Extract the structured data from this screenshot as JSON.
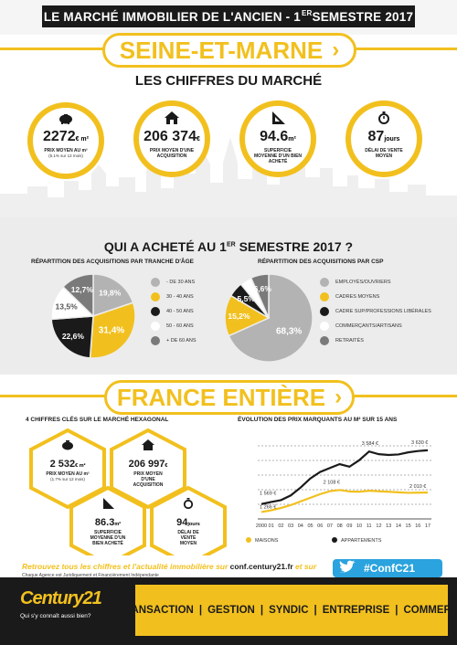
{
  "header": {
    "title_main": "LE MARCHÉ IMMOBILIER DE L'ANCIEN - 1",
    "title_sup": "ER",
    "title_end": " SEMESTRE 2017"
  },
  "region": {
    "name": "SEINE-ET-MARNE",
    "chevron": "›"
  },
  "market": {
    "heading": "LES CHIFFRES DU MARCHÉ",
    "stats": [
      {
        "icon": "piggy-bank-icon",
        "value": "2272",
        "unit": "€ m²",
        "label": "PRIX MOYEN AU m²",
        "sub": "(5.1% sur 12 mois)"
      },
      {
        "icon": "house-icon",
        "value": "206 374",
        "unit": "€",
        "label": "PRIX MOYEN D'UNE ACQUISITION",
        "sub": ""
      },
      {
        "icon": "set-square-icon",
        "value": "94.6",
        "unit": "m²",
        "label": "SUPERFICIE MOYENNE D'UN BIEN ACHETÉ",
        "sub": ""
      },
      {
        "icon": "stopwatch-icon",
        "value": "87",
        "unit": "jours",
        "label": "DÉLAI DE VENTE MOYEN",
        "sub": ""
      }
    ]
  },
  "buyers": {
    "heading_main": "QUI A ACHETÉ AU 1",
    "heading_sup": "ER",
    "heading_end": " SEMESTRE 2017 ?",
    "age_title": "RÉPARTITION DES ACQUISITIONS PAR TRANCHE D'ÂGE",
    "csp_title": "RÉPARTITION DES ACQUISITIONS PAR CSP"
  },
  "chart_data": [
    {
      "type": "pie",
      "title": "RÉPARTITION DES ACQUISITIONS PAR TRANCHE D'ÂGE",
      "categories": [
        "- DE 30 ANS",
        "30 - 40 ANS",
        "40 - 50 ANS",
        "50 - 60 ANS",
        "+ DE 60 ANS"
      ],
      "values": [
        19.8,
        31.4,
        22.6,
        13.5,
        12.7
      ],
      "labels": [
        "19,8%",
        "31,4%",
        "22,6%",
        "13,5%",
        "12,7%"
      ],
      "colors": [
        "#b3b3b3",
        "#f2c01e",
        "#1a1a1a",
        "#ffffff",
        "#7a7a7a"
      ],
      "legend": "right"
    },
    {
      "type": "pie",
      "title": "RÉPARTITION DES ACQUISITIONS PAR CSP",
      "categories": [
        "EMPLOYÉS/OUVRIERS",
        "CADRES MOYENS",
        "CADRE SUP/PROFESSIONS LIBÉRALES",
        "COMMERÇANTS/ARTISANS",
        "RETRAITÉS"
      ],
      "values": [
        68.3,
        15.2,
        5.5,
        4.4,
        6.6
      ],
      "labels": [
        "68,3%",
        "15,2%",
        "5,5%",
        "",
        "6,6%"
      ],
      "colors": [
        "#b3b3b3",
        "#f2c01e",
        "#1a1a1a",
        "#ffffff",
        "#7a7a7a"
      ],
      "legend": "right"
    },
    {
      "type": "line",
      "title": "ÉVOLUTION DES PRIX MARQUANTS AU M² SUR 15 ANS",
      "categories": [
        "2000",
        "01",
        "02",
        "03",
        "04",
        "05",
        "06",
        "07",
        "08",
        "09",
        "10",
        "11",
        "12",
        "13",
        "14",
        "15",
        "16",
        "17"
      ],
      "series": [
        {
          "name": "MAISONS",
          "color": "#f2c01e",
          "values": [
            1266,
            1330,
            1420,
            1530,
            1670,
            1810,
            1950,
            2060,
            2108,
            2050,
            2040,
            2080,
            2060,
            2040,
            2020,
            2000,
            2005,
            2010
          ]
        },
        {
          "name": "APPARTEMENTS",
          "color": "#1a1a1a",
          "values": [
            1569,
            1650,
            1720,
            1900,
            2200,
            2550,
            2800,
            2950,
            3100,
            3000,
            3250,
            3584,
            3480,
            3450,
            3470,
            3550,
            3600,
            3630
          ]
        }
      ],
      "annotations": [
        "1 266 €",
        "1 569 €",
        "2 108 €",
        "3 584 €",
        "3 630 €",
        "2 010 €"
      ],
      "ylim": [
        1000,
        3800
      ],
      "legend": "bottom"
    }
  ],
  "france": {
    "name": "FRANCE ENTIÈRE",
    "chevron": "›",
    "key_title": "4 CHIFFRES CLÉS SUR LE MARCHÉ HEXAGONAL",
    "evo_title": "ÉVOLUTION DES PRIX MARQUANTS AU M² SUR 15 ANS",
    "stats": [
      {
        "icon": "piggy-bank-icon",
        "value": "2 532",
        "unit": "€ m²",
        "label": "PRIX MOYEN AU m²",
        "sub": "(1.7% sur 12 mois)"
      },
      {
        "icon": "house-icon",
        "value": "206 997",
        "unit": "€",
        "label": "PRIX MOYEN D'UNE ACQUISITION",
        "sub": ""
      },
      {
        "icon": "set-square-icon",
        "value": "86.3",
        "unit": "m²",
        "label": "SUPERFICIE MOYENNE D'UN BIEN ACHETÉ",
        "sub": ""
      },
      {
        "icon": "stopwatch-icon",
        "value": "94",
        "unit": "jours",
        "label": "DÉLAI DE VENTE MOYEN",
        "sub": ""
      }
    ]
  },
  "footer": {
    "promo_text": "Retrouvez tous les chiffres et l'actualité immobilière sur ",
    "promo_link": "conf.century21.fr",
    "promo_end": " et sur",
    "legal": "Chaque Agence est Juridiquement et Financièrement Indépendante",
    "hashtag": "#ConfC21",
    "logo_text": "Century21",
    "tagline": "Qui s'y connaît aussi bien?",
    "services": [
      "TRANSACTION",
      "GESTION",
      "SYNDIC",
      "ENTREPRISE",
      "COMMERCE"
    ]
  },
  "colors": {
    "accent": "#f2c01e",
    "dark": "#1a1a1a",
    "grey": "#b3b3b3",
    "dark_grey": "#7a7a7a",
    "twitter": "#2aa3de"
  }
}
